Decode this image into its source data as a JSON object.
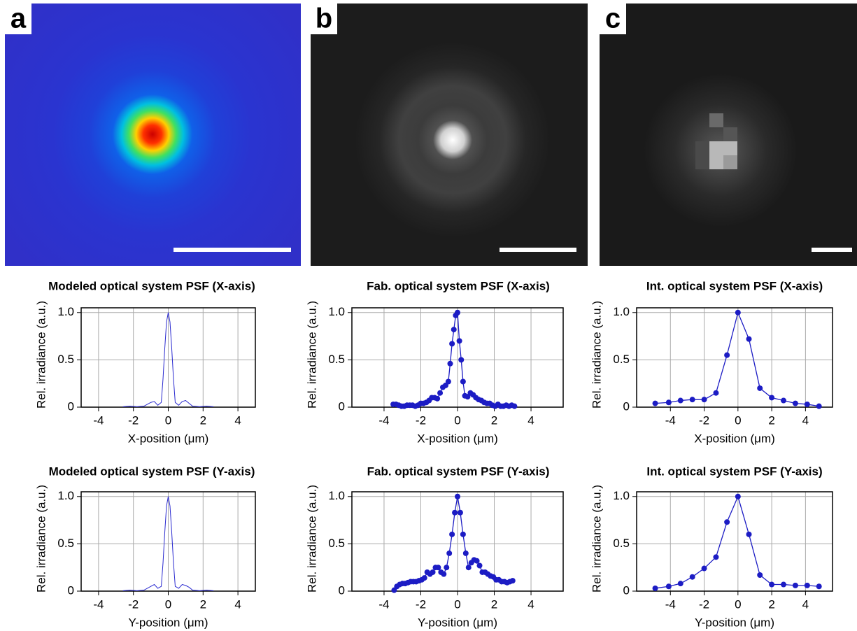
{
  "panels": [
    {
      "label": "a"
    },
    {
      "label": "b"
    },
    {
      "label": "c"
    }
  ],
  "chart_data": [
    {
      "type": "line",
      "title": "Modeled optical system PSF (X-axis)",
      "x_label": "X-position (μm)",
      "y_label": "Rel. irradiance (a.u.)",
      "markers": false,
      "color": "#2a2ad0",
      "x": [
        -2.6,
        -2.2,
        -1.8,
        -1.4,
        -1.2,
        -1.0,
        -0.8,
        -0.6,
        -0.4,
        -0.3,
        -0.2,
        -0.1,
        0,
        0.1,
        0.2,
        0.3,
        0.4,
        0.6,
        0.8,
        1.0,
        1.2,
        1.4,
        1.8,
        2.2,
        2.6
      ],
      "values": [
        0.005,
        0.01,
        0.005,
        0.01,
        0.03,
        0.05,
        0.06,
        0.02,
        0.05,
        0.3,
        0.62,
        0.9,
        1,
        0.9,
        0.62,
        0.3,
        0.05,
        0.02,
        0.06,
        0.07,
        0.04,
        0.01,
        0.005,
        0.01,
        0.005
      ],
      "xlim": [
        -5,
        5
      ],
      "xticks": [
        -4,
        -2,
        0,
        2,
        4
      ],
      "ylim": [
        0,
        1.05
      ],
      "yticks": [
        0,
        0.5,
        {
          "value": 1,
          "label": "1.0"
        }
      ],
      "grid": true
    },
    {
      "type": "line",
      "title": "Fab. optical system PSF (X-axis)",
      "x_label": "X-position (μm)",
      "y_label": "Rel. irradiance (a.u.)",
      "markers": true,
      "color": "#1c1cc4",
      "x": [
        -3.5,
        -3.35,
        -3.2,
        -3.05,
        -2.9,
        -2.75,
        -2.6,
        -2.45,
        -2.3,
        -2.15,
        -2.0,
        -1.85,
        -1.7,
        -1.55,
        -1.4,
        -1.25,
        -1.1,
        -0.95,
        -0.8,
        -0.65,
        -0.5,
        -0.4,
        -0.3,
        -0.2,
        -0.1,
        0,
        0.1,
        0.2,
        0.3,
        0.4,
        0.55,
        0.7,
        0.85,
        1.0,
        1.15,
        1.3,
        1.45,
        1.6,
        1.75,
        1.9,
        2.05,
        2.2,
        2.35,
        2.5,
        2.65,
        2.8,
        2.95,
        3.1
      ],
      "values": [
        0.03,
        0.03,
        0.02,
        0.01,
        0.01,
        0.02,
        0.02,
        0.02,
        0.01,
        0.02,
        0.04,
        0.04,
        0.05,
        0.07,
        0.1,
        0.1,
        0.09,
        0.15,
        0.21,
        0.23,
        0.27,
        0.46,
        0.67,
        0.82,
        0.97,
        1.0,
        0.7,
        0.5,
        0.27,
        0.12,
        0.11,
        0.15,
        0.13,
        0.1,
        0.08,
        0.07,
        0.05,
        0.04,
        0.04,
        0.02,
        0.01,
        0.03,
        0.01,
        0.01,
        0.02,
        0.01,
        0.02,
        0.01
      ],
      "xlim": [
        -5.75,
        5.75
      ],
      "xticks": [
        -4,
        -2,
        0,
        2,
        4
      ],
      "ylim": [
        0,
        1.05
      ],
      "yticks": [
        0,
        0.5,
        {
          "value": 1,
          "label": "1.0"
        }
      ],
      "grid": true
    },
    {
      "type": "line",
      "title": "Int. optical system PSF (X-axis)",
      "x_label": "X-position (μm)",
      "y_label": "Rel. irradiance (a.u.)",
      "markers": true,
      "color": "#1c1cc4",
      "x": [
        -4.9,
        -4.1,
        -3.4,
        -2.7,
        -2.0,
        -1.3,
        -0.65,
        0,
        0.65,
        1.3,
        2.0,
        2.7,
        3.4,
        4.1,
        4.8
      ],
      "values": [
        0.04,
        0.05,
        0.07,
        0.08,
        0.08,
        0.15,
        0.55,
        1.0,
        0.72,
        0.2,
        0.1,
        0.07,
        0.04,
        0.03,
        0.01
      ],
      "xlim": [
        -6,
        5.6
      ],
      "xticks": [
        -4,
        -2,
        0,
        2,
        4
      ],
      "ylim": [
        0,
        1.05
      ],
      "yticks": [
        0,
        0.5,
        {
          "value": 1,
          "label": "1.0"
        }
      ],
      "grid": true
    },
    {
      "type": "line",
      "title": "Modeled optical system PSF (Y-axis)",
      "x_label": "Y-position (μm)",
      "y_label": "Rel. irradiance (a.u.)",
      "markers": false,
      "color": "#2a2ad0",
      "x": [
        -2.6,
        -2.2,
        -1.8,
        -1.4,
        -1.2,
        -1.0,
        -0.8,
        -0.6,
        -0.4,
        -0.3,
        -0.2,
        -0.1,
        0,
        0.1,
        0.2,
        0.3,
        0.4,
        0.6,
        0.8,
        1.0,
        1.2,
        1.4,
        1.8,
        2.2,
        2.6
      ],
      "values": [
        0.005,
        0.01,
        0.005,
        0.01,
        0.03,
        0.05,
        0.07,
        0.03,
        0.05,
        0.3,
        0.62,
        0.9,
        1,
        0.9,
        0.62,
        0.3,
        0.05,
        0.03,
        0.07,
        0.06,
        0.04,
        0.01,
        0.005,
        0.01,
        0.005
      ],
      "xlim": [
        -5,
        5
      ],
      "xticks": [
        -4,
        -2,
        0,
        2,
        4
      ],
      "ylim": [
        0,
        1.05
      ],
      "yticks": [
        0,
        0.5,
        {
          "value": 1,
          "label": "1.0"
        }
      ],
      "grid": true
    },
    {
      "type": "line",
      "title": "Fab. optical system PSF (Y-axis)",
      "x_label": "Y-position (μm)",
      "y_label": "Rel. irradiance (a.u.)",
      "markers": true,
      "color": "#1c1cc4",
      "x": [
        -3.45,
        -3.3,
        -3.15,
        -3.0,
        -2.85,
        -2.7,
        -2.55,
        -2.4,
        -2.25,
        -2.1,
        -1.95,
        -1.8,
        -1.65,
        -1.5,
        -1.35,
        -1.2,
        -1.05,
        -0.9,
        -0.75,
        -0.6,
        -0.45,
        -0.3,
        -0.15,
        0,
        0.15,
        0.3,
        0.45,
        0.6,
        0.75,
        0.9,
        1.05,
        1.2,
        1.35,
        1.5,
        1.65,
        1.8,
        1.95,
        2.1,
        2.25,
        2.4,
        2.55,
        2.7,
        2.85,
        3.0
      ],
      "values": [
        0.01,
        0.05,
        0.07,
        0.08,
        0.08,
        0.09,
        0.1,
        0.1,
        0.1,
        0.11,
        0.12,
        0.14,
        0.2,
        0.18,
        0.2,
        0.25,
        0.25,
        0.2,
        0.18,
        0.25,
        0.4,
        0.6,
        0.83,
        1.0,
        0.83,
        0.6,
        0.4,
        0.25,
        0.3,
        0.33,
        0.32,
        0.27,
        0.2,
        0.2,
        0.18,
        0.16,
        0.15,
        0.12,
        0.12,
        0.1,
        0.1,
        0.09,
        0.1,
        0.11
      ],
      "xlim": [
        -5.75,
        5.75
      ],
      "xticks": [
        -4,
        -2,
        0,
        2,
        4
      ],
      "ylim": [
        0,
        1.05
      ],
      "yticks": [
        0,
        0.5,
        {
          "value": 1,
          "label": "1.0"
        }
      ],
      "grid": true
    },
    {
      "type": "line",
      "title": "Int. optical system PSF (Y-axis)",
      "x_label": "Y-position (μm)",
      "y_label": "Rel. irradiance (a.u.)",
      "markers": true,
      "color": "#1c1cc4",
      "x": [
        -4.9,
        -4.1,
        -3.4,
        -2.7,
        -2.0,
        -1.3,
        -0.65,
        0,
        0.65,
        1.3,
        2.0,
        2.7,
        3.4,
        4.1,
        4.8
      ],
      "values": [
        0.03,
        0.05,
        0.08,
        0.15,
        0.24,
        0.36,
        0.73,
        1.0,
        0.6,
        0.17,
        0.07,
        0.07,
        0.06,
        0.06,
        0.05
      ],
      "xlim": [
        -6,
        5.6
      ],
      "xticks": [
        -4,
        -2,
        0,
        2,
        4
      ],
      "ylim": [
        0,
        1.05
      ],
      "yticks": [
        0,
        0.5,
        {
          "value": 1,
          "label": "1.0"
        }
      ],
      "grid": true
    }
  ]
}
